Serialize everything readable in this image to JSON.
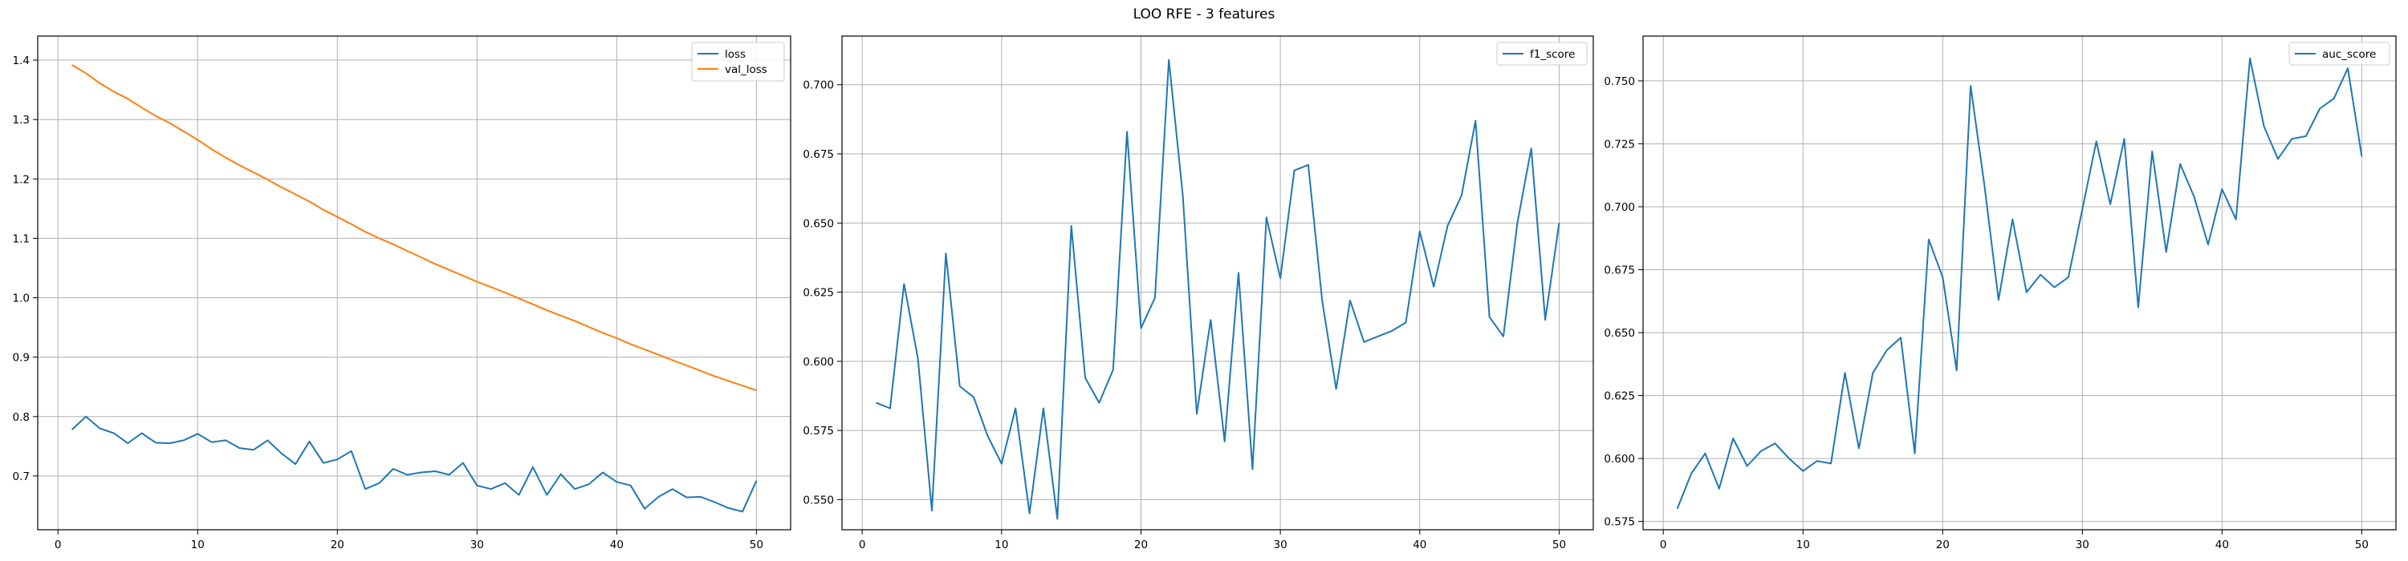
{
  "figure": {
    "suptitle": "LOO RFE - 3 features",
    "colors": {
      "series_1": "#1f77b4",
      "series_2": "#ff7f0e",
      "grid": "#b0b0b0",
      "axis": "#000000"
    }
  },
  "chart_data": [
    {
      "type": "line",
      "title": "",
      "xlabel": "",
      "ylabel": "",
      "xlim": [
        -1.45,
        52.45
      ],
      "ylim": [
        0.6095,
        1.4405
      ],
      "xticks": [
        0,
        10,
        20,
        30,
        40,
        50
      ],
      "yticks": [
        0.7,
        0.8,
        0.9,
        1.0,
        1.1,
        1.2,
        1.3,
        1.4
      ],
      "ytick_labels": [
        "0.7",
        "0.8",
        "0.9",
        "1.0",
        "1.1",
        "1.2",
        "1.3",
        "1.4"
      ],
      "grid": true,
      "legend_position": "upper right",
      "x": [
        1,
        2,
        3,
        4,
        5,
        6,
        7,
        8,
        9,
        10,
        11,
        12,
        13,
        14,
        15,
        16,
        17,
        18,
        19,
        20,
        21,
        22,
        23,
        24,
        25,
        26,
        27,
        28,
        29,
        30,
        31,
        32,
        33,
        34,
        35,
        36,
        37,
        38,
        39,
        40,
        41,
        42,
        43,
        44,
        45,
        46,
        47,
        48,
        49,
        50
      ],
      "series": [
        {
          "name": "loss",
          "color": "#1f77b4",
          "values": [
            0.778,
            0.8,
            0.78,
            0.772,
            0.755,
            0.772,
            0.756,
            0.755,
            0.76,
            0.771,
            0.757,
            0.76,
            0.747,
            0.744,
            0.76,
            0.738,
            0.72,
            0.758,
            0.722,
            0.728,
            0.742,
            0.678,
            0.688,
            0.712,
            0.702,
            0.706,
            0.708,
            0.702,
            0.722,
            0.684,
            0.678,
            0.688,
            0.668,
            0.715,
            0.668,
            0.703,
            0.678,
            0.686,
            0.706,
            0.69,
            0.684,
            0.645,
            0.665,
            0.678,
            0.664,
            0.665,
            0.656,
            0.646,
            0.64,
            0.692
          ]
        },
        {
          "name": "val_loss",
          "color": "#ff7f0e",
          "values": [
            1.392,
            1.378,
            1.361,
            1.347,
            1.335,
            1.32,
            1.306,
            1.294,
            1.28,
            1.266,
            1.25,
            1.236,
            1.223,
            1.211,
            1.199,
            1.186,
            1.174,
            1.162,
            1.148,
            1.136,
            1.124,
            1.111,
            1.1,
            1.09,
            1.079,
            1.068,
            1.057,
            1.047,
            1.037,
            1.027,
            1.018,
            1.009,
            0.999,
            0.989,
            0.979,
            0.97,
            0.961,
            0.951,
            0.941,
            0.932,
            0.922,
            0.913,
            0.904,
            0.895,
            0.886,
            0.877,
            0.868,
            0.86,
            0.852,
            0.844
          ]
        }
      ]
    },
    {
      "type": "line",
      "title": "",
      "xlabel": "",
      "ylabel": "",
      "xlim": [
        -1.45,
        52.45
      ],
      "ylim": [
        0.5391,
        0.7176
      ],
      "xticks": [
        0,
        10,
        20,
        30,
        40,
        50
      ],
      "yticks": [
        0.55,
        0.575,
        0.6,
        0.625,
        0.65,
        0.675,
        0.7
      ],
      "ytick_labels": [
        "0.550",
        "0.575",
        "0.600",
        "0.625",
        "0.650",
        "0.675",
        "0.700"
      ],
      "grid": true,
      "legend_position": "upper right",
      "x": [
        1,
        2,
        3,
        4,
        5,
        6,
        7,
        8,
        9,
        10,
        11,
        12,
        13,
        14,
        15,
        16,
        17,
        18,
        19,
        20,
        21,
        22,
        23,
        24,
        25,
        26,
        27,
        28,
        29,
        30,
        31,
        32,
        33,
        34,
        35,
        36,
        37,
        38,
        39,
        40,
        41,
        42,
        43,
        44,
        45,
        46,
        47,
        48,
        49,
        50
      ],
      "series": [
        {
          "name": "f1_score",
          "color": "#1f77b4",
          "values": [
            0.585,
            0.583,
            0.628,
            0.601,
            0.546,
            0.639,
            0.591,
            0.587,
            0.573,
            0.563,
            0.583,
            0.545,
            0.583,
            0.543,
            0.649,
            0.594,
            0.585,
            0.597,
            0.683,
            0.612,
            0.623,
            0.709,
            0.66,
            0.581,
            0.615,
            0.571,
            0.632,
            0.561,
            0.652,
            0.63,
            0.669,
            0.671,
            0.622,
            0.59,
            0.622,
            0.607,
            0.609,
            0.611,
            0.614,
            0.647,
            0.627,
            0.649,
            0.66,
            0.687,
            0.616,
            0.609,
            0.65,
            0.677,
            0.615,
            0.65
          ]
        }
      ]
    },
    {
      "type": "line",
      "title": "",
      "xlabel": "",
      "ylabel": "",
      "xlim": [
        -1.45,
        52.45
      ],
      "ylim": [
        0.5717,
        0.7678
      ],
      "xticks": [
        0,
        10,
        20,
        30,
        40,
        50
      ],
      "yticks": [
        0.575,
        0.6,
        0.625,
        0.65,
        0.675,
        0.7,
        0.725,
        0.75
      ],
      "ytick_labels": [
        "0.575",
        "0.600",
        "0.625",
        "0.650",
        "0.675",
        "0.700",
        "0.725",
        "0.750"
      ],
      "grid": true,
      "legend_position": "upper right",
      "x": [
        1,
        2,
        3,
        4,
        5,
        6,
        7,
        8,
        9,
        10,
        11,
        12,
        13,
        14,
        15,
        16,
        17,
        18,
        19,
        20,
        21,
        22,
        23,
        24,
        25,
        26,
        27,
        28,
        29,
        30,
        31,
        32,
        33,
        34,
        35,
        36,
        37,
        38,
        39,
        40,
        41,
        42,
        43,
        44,
        45,
        46,
        47,
        48,
        49,
        50
      ],
      "series": [
        {
          "name": "auc_score",
          "color": "#1f77b4",
          "values": [
            0.58,
            0.594,
            0.602,
            0.588,
            0.608,
            0.597,
            0.603,
            0.606,
            0.6,
            0.595,
            0.599,
            0.598,
            0.634,
            0.604,
            0.634,
            0.643,
            0.648,
            0.602,
            0.687,
            0.672,
            0.635,
            0.748,
            0.708,
            0.663,
            0.695,
            0.666,
            0.673,
            0.668,
            0.672,
            0.699,
            0.726,
            0.701,
            0.727,
            0.66,
            0.722,
            0.682,
            0.717,
            0.704,
            0.685,
            0.707,
            0.695,
            0.759,
            0.732,
            0.719,
            0.727,
            0.728,
            0.739,
            0.743,
            0.755,
            0.72
          ]
        }
      ]
    }
  ]
}
